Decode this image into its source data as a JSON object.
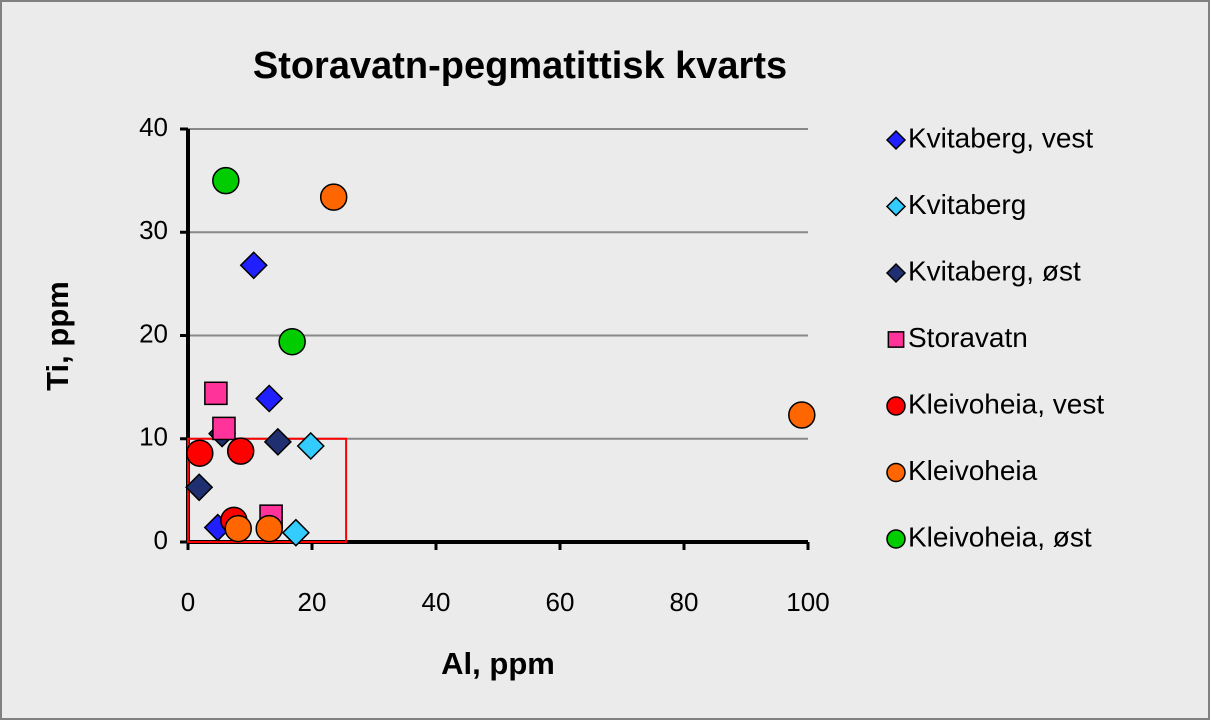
{
  "chart_data": {
    "type": "scatter",
    "title": "Storavatn-pegmatittisk kvarts",
    "x_label": "Al, ppm",
    "y_label": "Ti, ppm",
    "xlim": [
      0,
      100
    ],
    "ylim": [
      0,
      40
    ],
    "xticks": [
      0,
      20,
      40,
      60,
      80,
      100
    ],
    "yticks": [
      0,
      10,
      20,
      30,
      40
    ],
    "grid": true,
    "legend": "right",
    "region": {
      "color": "#ff0000",
      "x": [
        0,
        25.5
      ],
      "y": [
        0,
        10
      ]
    },
    "series": [
      {
        "name": "Kvitaberg, vest",
        "color": "#2020ff",
        "marker": "diamond",
        "x": [
          10.6,
          13.1,
          4.8
        ],
        "values": [
          26.8,
          13.9,
          1.4
        ]
      },
      {
        "name": "Kvitaberg",
        "color": "#33ccff",
        "marker": "diamond",
        "x": [
          19.8,
          17.4
        ],
        "values": [
          9.3,
          0.9
        ]
      },
      {
        "name": "Kvitaberg, øst",
        "color": "#1f2f6f",
        "marker": "diamond",
        "x": [
          5.5,
          14.5,
          1.8
        ],
        "values": [
          10.5,
          9.7,
          5.3
        ]
      },
      {
        "name": "Storavatn",
        "color": "#ff3399",
        "marker": "square",
        "x": [
          4.5,
          5.8,
          13.4
        ],
        "values": [
          14.4,
          11.0,
          2.5
        ]
      },
      {
        "name": "Kleivoheia, vest",
        "color": "#ff0000",
        "marker": "circle",
        "x": [
          1.9,
          8.5,
          7.4
        ],
        "values": [
          8.6,
          8.8,
          2.1
        ]
      },
      {
        "name": "Kleivoheia",
        "color": "#ff6600",
        "marker": "circle",
        "x": [
          23.5,
          99,
          8.1,
          13.1
        ],
        "values": [
          33.4,
          12.3,
          1.3,
          1.3
        ]
      },
      {
        "name": "Kleivoheia, øst",
        "color": "#00cc00",
        "marker": "circle",
        "x": [
          6.1,
          16.8
        ],
        "values": [
          35.0,
          19.4
        ]
      }
    ]
  }
}
